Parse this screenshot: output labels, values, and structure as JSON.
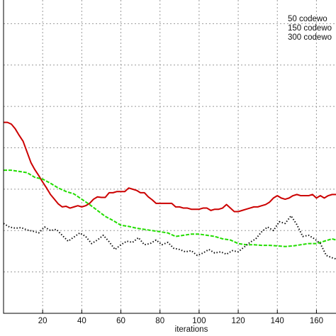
{
  "chart_data": {
    "type": "line",
    "xlabel": "iterations",
    "ylabel": "",
    "title": "",
    "xlim": [
      0,
      170
    ],
    "x_ticks": [
      20,
      40,
      60,
      80,
      100,
      120,
      140,
      160
    ],
    "grid": true,
    "legend_position": "top-right",
    "series": [
      {
        "name": "50 codewo",
        "color": "#cc0000",
        "style": "solid",
        "x": [
          0,
          2,
          4,
          6,
          8,
          10,
          12,
          14,
          16,
          18,
          20,
          22,
          24,
          26,
          28,
          30,
          32,
          34,
          36,
          38,
          40,
          42,
          44,
          46,
          48,
          50,
          52,
          54,
          56,
          58,
          60,
          62,
          64,
          66,
          68,
          70,
          72,
          74,
          76,
          78,
          80,
          82,
          84,
          86,
          88,
          90,
          92,
          94,
          96,
          98,
          100,
          102,
          104,
          106,
          108,
          110,
          112,
          114,
          116,
          118,
          120,
          122,
          124,
          126,
          128,
          130,
          132,
          134,
          136,
          138,
          140,
          142,
          144,
          146,
          148,
          150,
          152,
          154,
          156,
          158,
          160,
          162,
          164,
          166,
          168,
          170
        ],
        "y": [
          0.623,
          0.623,
          0.62,
          0.612,
          0.601,
          0.591,
          0.573,
          0.555,
          0.543,
          0.533,
          0.522,
          0.512,
          0.501,
          0.493,
          0.485,
          0.48,
          0.481,
          0.478,
          0.48,
          0.482,
          0.48,
          0.482,
          0.486,
          0.493,
          0.497,
          0.496,
          0.496,
          0.504,
          0.504,
          0.506,
          0.506,
          0.506,
          0.512,
          0.51,
          0.508,
          0.504,
          0.504,
          0.497,
          0.492,
          0.486,
          0.486,
          0.486,
          0.486,
          0.486,
          0.48,
          0.48,
          0.478,
          0.478,
          0.476,
          0.476,
          0.476,
          0.478,
          0.478,
          0.474,
          0.476,
          0.476,
          0.478,
          0.484,
          0.478,
          0.472,
          0.472,
          0.474,
          0.476,
          0.478,
          0.48,
          0.48,
          0.482,
          0.484,
          0.488,
          0.495,
          0.499,
          0.495,
          0.493,
          0.495,
          0.499,
          0.501,
          0.499,
          0.499,
          0.499,
          0.501,
          0.495,
          0.499,
          0.495,
          0.499,
          0.501,
          0.501
        ]
      },
      {
        "name": "150 codewo",
        "color": "#22dd00",
        "style": "dashed",
        "x": [
          0,
          4,
          8,
          12,
          16,
          20,
          24,
          28,
          32,
          36,
          40,
          44,
          48,
          52,
          56,
          60,
          64,
          68,
          72,
          76,
          80,
          84,
          88,
          92,
          96,
          100,
          104,
          108,
          112,
          116,
          120,
          124,
          128,
          132,
          136,
          140,
          144,
          148,
          152,
          156,
          160,
          164,
          168,
          170
        ],
        "y": [
          0.542,
          0.542,
          0.54,
          0.538,
          0.53,
          0.527,
          0.52,
          0.512,
          0.506,
          0.502,
          0.493,
          0.484,
          0.474,
          0.464,
          0.457,
          0.449,
          0.447,
          0.444,
          0.442,
          0.44,
          0.438,
          0.436,
          0.43,
          0.432,
          0.434,
          0.434,
          0.432,
          0.43,
          0.426,
          0.424,
          0.418,
          0.416,
          0.416,
          0.415,
          0.415,
          0.414,
          0.413,
          0.414,
          0.416,
          0.418,
          0.418,
          0.422,
          0.426,
          0.424
        ]
      },
      {
        "name": "300 codewo",
        "color": "#111111",
        "style": "dotted",
        "x": [
          0,
          3,
          6,
          9,
          12,
          15,
          18,
          21,
          24,
          27,
          30,
          33,
          36,
          39,
          42,
          45,
          48,
          51,
          54,
          57,
          60,
          63,
          66,
          69,
          72,
          75,
          78,
          81,
          84,
          87,
          90,
          93,
          96,
          99,
          102,
          105,
          108,
          111,
          114,
          117,
          120,
          123,
          126,
          129,
          132,
          135,
          138,
          141,
          144,
          147,
          150,
          153,
          156,
          159,
          162,
          165,
          168,
          170
        ],
        "y": [
          0.452,
          0.446,
          0.444,
          0.445,
          0.441,
          0.439,
          0.436,
          0.446,
          0.44,
          0.442,
          0.432,
          0.422,
          0.429,
          0.436,
          0.43,
          0.418,
          0.424,
          0.432,
          0.421,
          0.408,
          0.416,
          0.422,
          0.42,
          0.428,
          0.416,
          0.418,
          0.424,
          0.416,
          0.42,
          0.41,
          0.408,
          0.404,
          0.406,
          0.398,
          0.402,
          0.408,
          0.402,
          0.404,
          0.4,
          0.406,
          0.404,
          0.412,
          0.42,
          0.426,
          0.438,
          0.446,
          0.44,
          0.455,
          0.452,
          0.465,
          0.45,
          0.43,
          0.432,
          0.426,
          0.418,
          0.398,
          0.394,
          0.392
        ]
      }
    ]
  }
}
